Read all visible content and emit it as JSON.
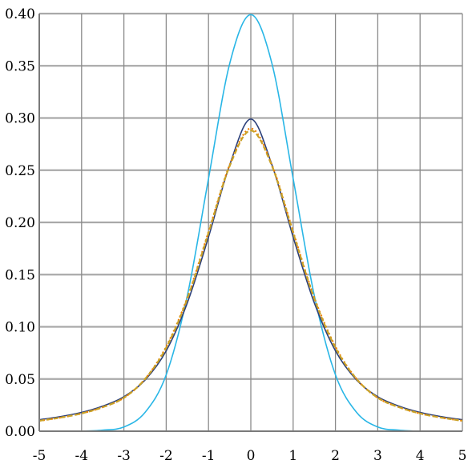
{
  "chart_data": {
    "type": "line",
    "title": "",
    "xlabel": "",
    "ylabel": "",
    "xlim": [
      -5,
      5
    ],
    "ylim": [
      0,
      0.4
    ],
    "x_ticks": [
      "-5",
      "-4",
      "-3",
      "-2",
      "-1",
      "0",
      "1",
      "2",
      "3",
      "4",
      "5"
    ],
    "y_ticks": [
      "0.00",
      "0.05",
      "0.10",
      "0.15",
      "0.20",
      "0.25",
      "0.30",
      "0.35",
      "0.40"
    ],
    "grid": true,
    "legend": "none",
    "x": [
      -5,
      -4.5,
      -4,
      -3.5,
      -3,
      -2.5,
      -2,
      -1.5,
      -1,
      -0.5,
      0,
      0.5,
      1,
      1.5,
      2,
      2.5,
      3,
      3.5,
      4,
      4.5,
      5
    ],
    "series": [
      {
        "color": "#29b6e6",
        "style": "solid",
        "values": [
          0.0,
          0.0,
          0.0,
          0.001,
          0.004,
          0.018,
          0.054,
          0.13,
          0.242,
          0.352,
          0.399,
          0.352,
          0.242,
          0.13,
          0.054,
          0.018,
          0.004,
          0.001,
          0.0,
          0.0,
          0.0
        ]
      },
      {
        "color": "#2b3f7a",
        "style": "solid",
        "values": [
          0.011,
          0.014,
          0.018,
          0.024,
          0.033,
          0.049,
          0.077,
          0.123,
          0.186,
          0.255,
          0.299,
          0.255,
          0.186,
          0.123,
          0.077,
          0.049,
          0.033,
          0.024,
          0.018,
          0.014,
          0.011
        ]
      },
      {
        "color": "#f07f00",
        "style": "dotted",
        "values": [
          0.01,
          0.013,
          0.017,
          0.023,
          0.032,
          0.05,
          0.081,
          0.128,
          0.191,
          0.255,
          0.29,
          0.255,
          0.191,
          0.128,
          0.081,
          0.05,
          0.032,
          0.023,
          0.017,
          0.013,
          0.01
        ]
      },
      {
        "color": "#c9a227",
        "style": "dashed",
        "values": [
          0.01,
          0.013,
          0.017,
          0.023,
          0.032,
          0.05,
          0.08,
          0.127,
          0.19,
          0.254,
          0.288,
          0.254,
          0.19,
          0.127,
          0.08,
          0.05,
          0.032,
          0.023,
          0.017,
          0.013,
          0.01
        ]
      }
    ]
  }
}
